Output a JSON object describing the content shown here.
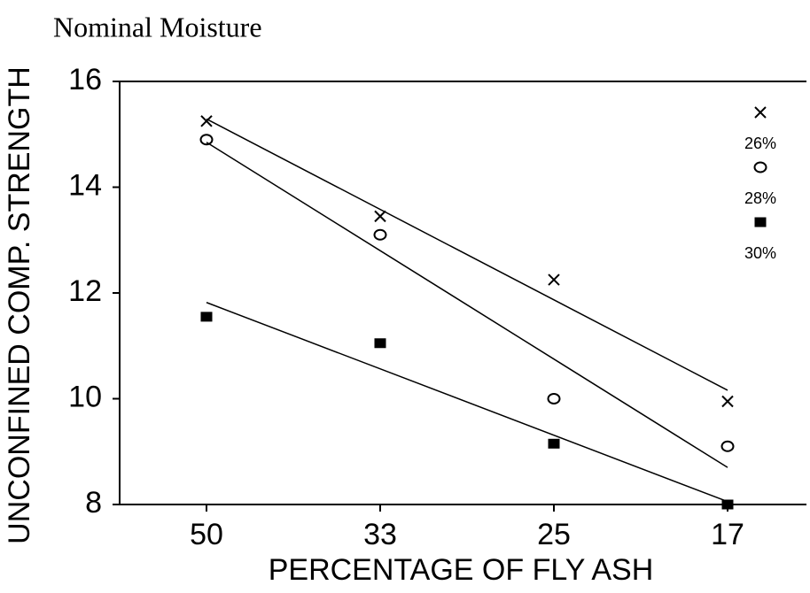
{
  "chart_data": {
    "type": "scatter",
    "title": "Nominal Moisture",
    "x_label": "PERCENTAGE OF FLY ASH",
    "y_label": "UNCONFINED COMP. STRENGTH",
    "categories": [
      "50",
      "33",
      "25",
      "17"
    ],
    "series": [
      {
        "name": "26%",
        "color": "#000000",
        "marker": "x",
        "values": [
          15.25,
          13.45,
          12.25,
          9.95
        ]
      },
      {
        "name": "28%",
        "color": "#000000",
        "marker": "o",
        "values": [
          14.9,
          13.1,
          10.0,
          9.1
        ]
      },
      {
        "name": "30%",
        "color": "#000000",
        "marker": "s",
        "values": [
          11.55,
          11.05,
          9.15,
          8.0
        ]
      }
    ],
    "trendline": "linear",
    "ylim": [
      8,
      16
    ],
    "yticks": [
      8,
      10,
      12,
      14,
      16
    ],
    "grid": false,
    "legend": "right"
  }
}
